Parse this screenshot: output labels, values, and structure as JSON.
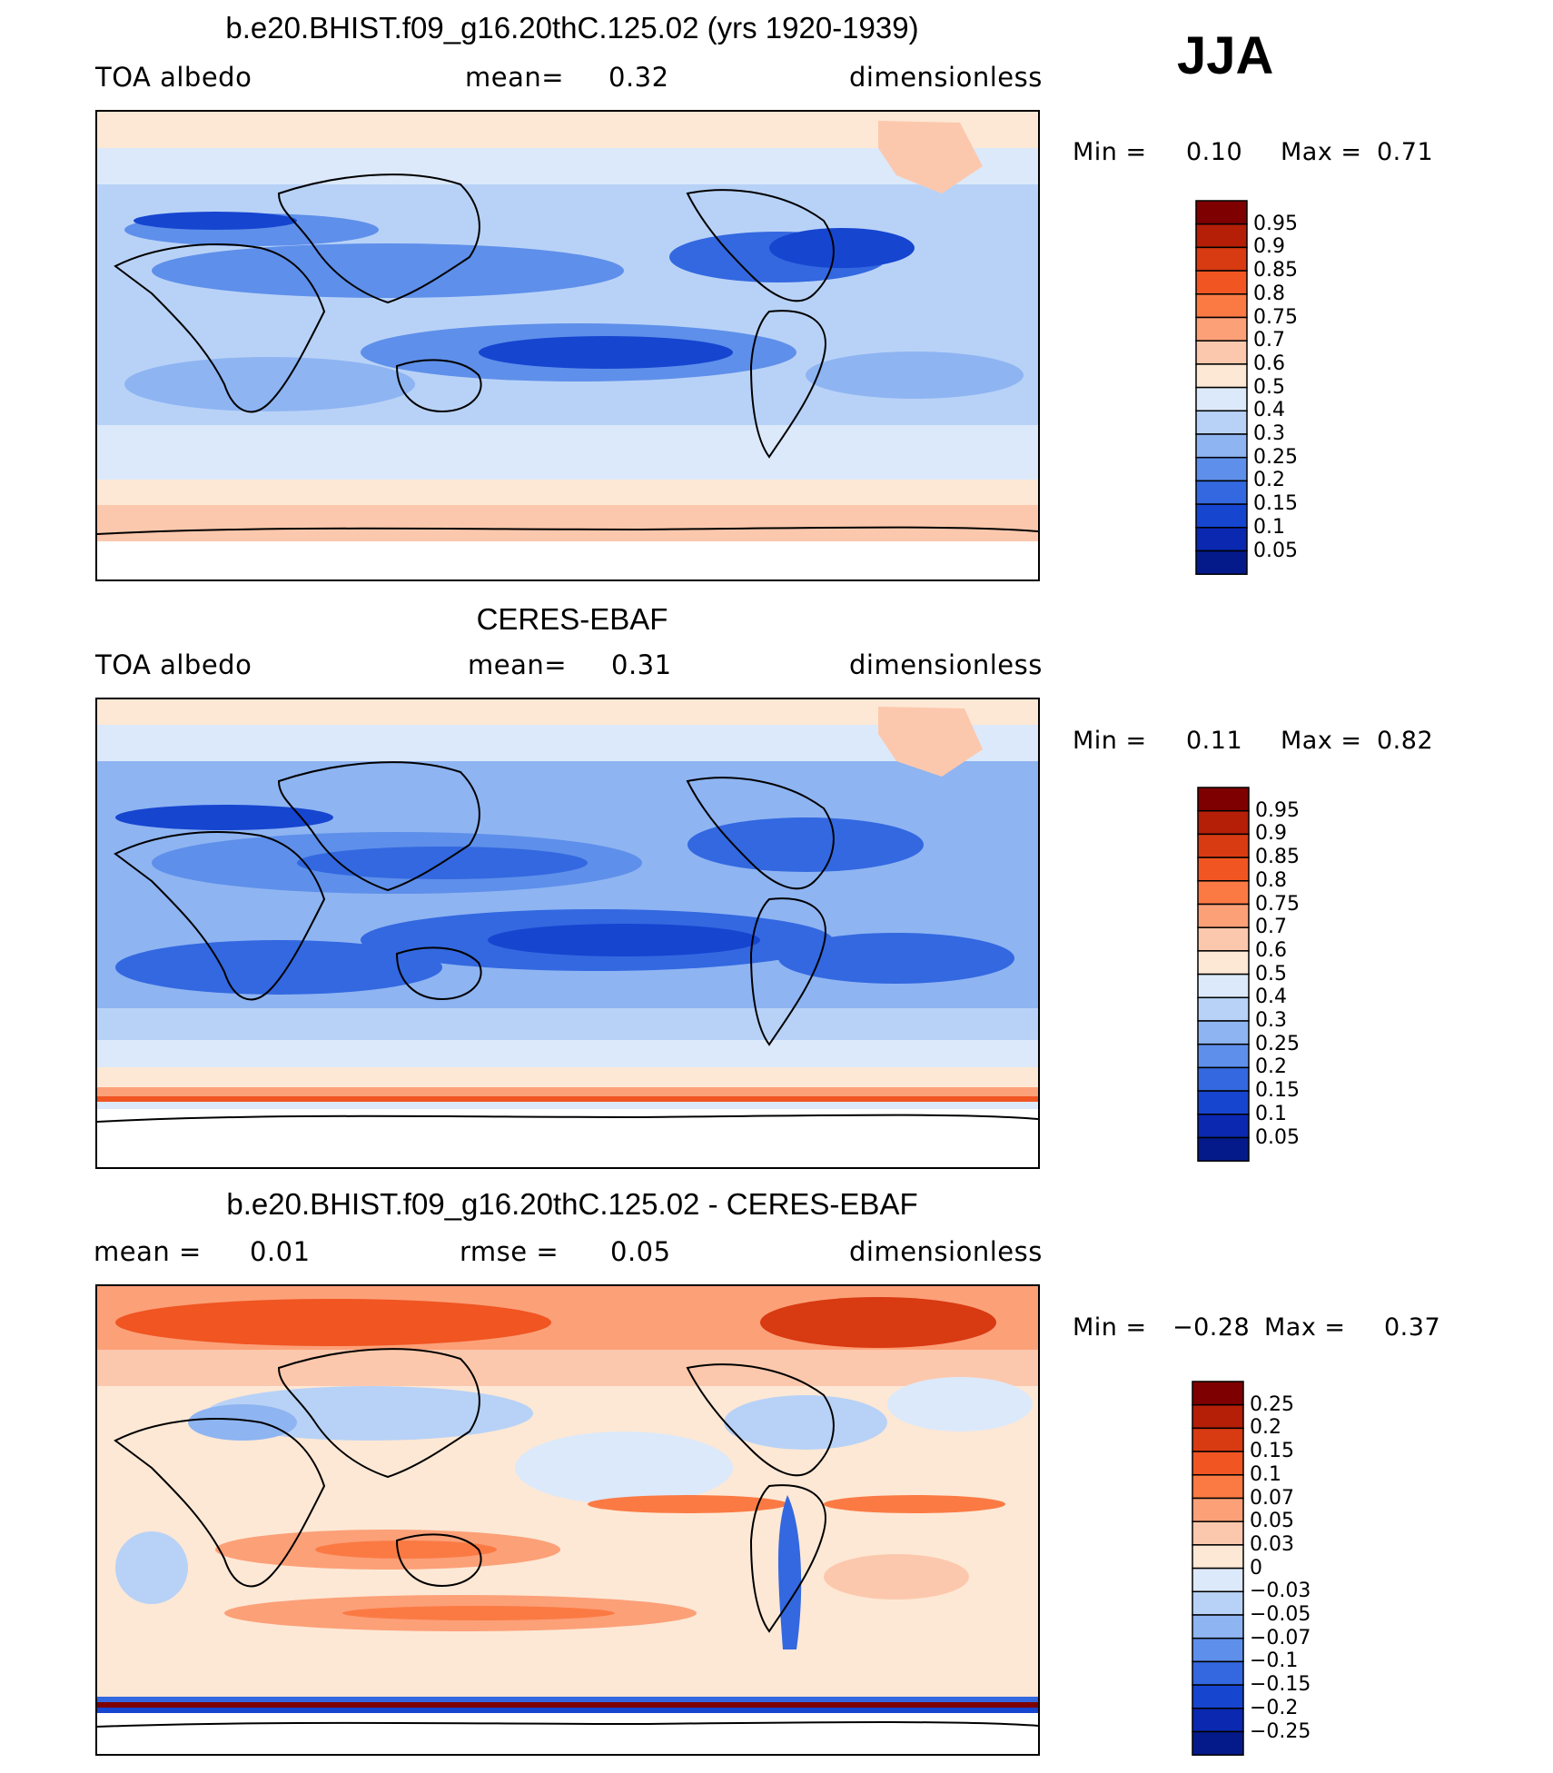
{
  "season": "JJA",
  "panels": [
    {
      "title": "b.e20.BHIST.f09_g16.20thC.125.02 (yrs 1920-1939)",
      "left_label": "TOA  albedo",
      "center_label": "mean=",
      "center_value": "0.32",
      "right_label": "dimensionless",
      "min_label": "Min  =",
      "min_value": "0.10",
      "max_label": "Max  =",
      "max_value": "0.71",
      "colorbar": {
        "levels": [
          "0.95",
          "0.9",
          "0.85",
          "0.8",
          "0.75",
          "0.7",
          "0.6",
          "0.5",
          "0.4",
          "0.3",
          "0.25",
          "0.2",
          "0.15",
          "0.1",
          "0.05"
        ],
        "colors": [
          "#7f0000",
          "#b51e07",
          "#d83a12",
          "#f05522",
          "#fb7a44",
          "#fca078",
          "#fcc8ad",
          "#fde8d5",
          "#dce9fa",
          "#b8d2f7",
          "#8eb4f2",
          "#5e8fea",
          "#3368e0",
          "#1645d0",
          "#0a28b0",
          "#051a8a"
        ]
      }
    },
    {
      "title": "CERES-EBAF",
      "left_label": "TOA  albedo",
      "center_label": "mean=",
      "center_value": "0.31",
      "right_label": "dimensionless",
      "min_label": "Min  =",
      "min_value": "0.11",
      "max_label": "Max  =",
      "max_value": "0.82",
      "colorbar": {
        "levels": [
          "0.95",
          "0.9",
          "0.85",
          "0.8",
          "0.75",
          "0.7",
          "0.6",
          "0.5",
          "0.4",
          "0.3",
          "0.25",
          "0.2",
          "0.15",
          "0.1",
          "0.05"
        ],
        "colors": [
          "#7f0000",
          "#b51e07",
          "#d83a12",
          "#f05522",
          "#fb7a44",
          "#fca078",
          "#fcc8ad",
          "#fde8d5",
          "#dce9fa",
          "#b8d2f7",
          "#8eb4f2",
          "#5e8fea",
          "#3368e0",
          "#1645d0",
          "#0a28b0",
          "#051a8a"
        ]
      }
    },
    {
      "title": "b.e20.BHIST.f09_g16.20thC.125.02 - CERES-EBAF",
      "left_label": "mean  =",
      "left_value": "0.01",
      "center_label": "rmse  =",
      "center_value": "0.05",
      "right_label": "dimensionless",
      "min_label": "Min  =",
      "min_value": "−0.28",
      "max_label": "Max  =",
      "max_value": "0.37",
      "colorbar": {
        "levels": [
          "0.25",
          "0.2",
          "0.15",
          "0.1",
          "0.07",
          "0.05",
          "0.03",
          "0",
          "−0.03",
          "−0.05",
          "−0.07",
          "−0.1",
          "−0.15",
          "−0.2",
          "−0.25"
        ],
        "colors": [
          "#7f0000",
          "#b51e07",
          "#d83a12",
          "#f05522",
          "#fb7a44",
          "#fca078",
          "#fcc8ad",
          "#fde8d5",
          "#dce9fa",
          "#b8d2f7",
          "#8eb4f2",
          "#5e8fea",
          "#3368e0",
          "#1645d0",
          "#0a28b0",
          "#051a8a"
        ]
      }
    }
  ]
}
